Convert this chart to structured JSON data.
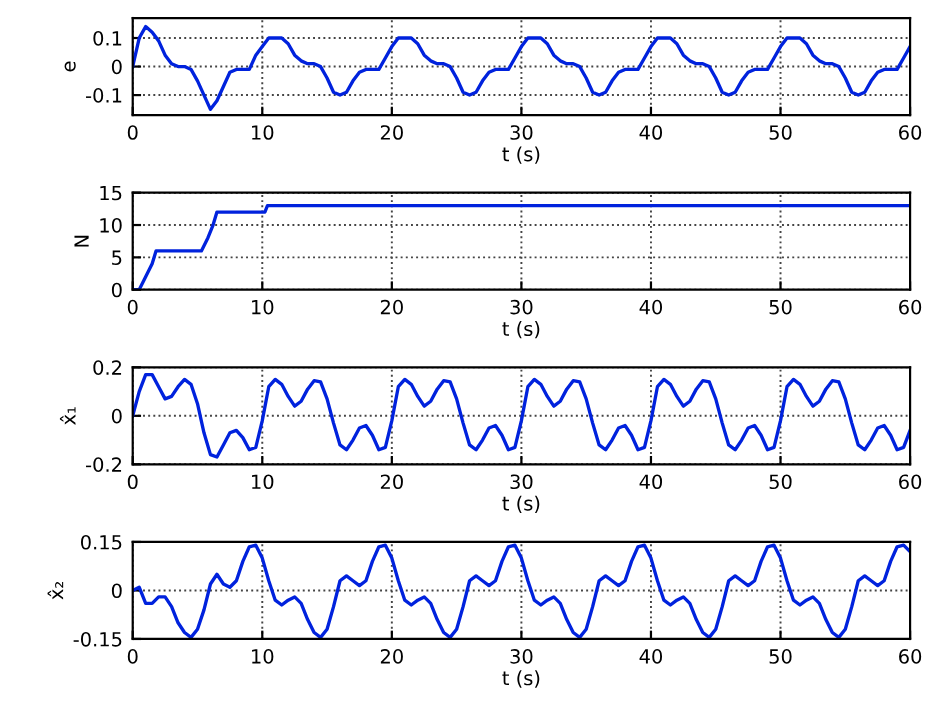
{
  "chart_data": [
    {
      "type": "line",
      "xlabel": "t (s)",
      "ylabel": "e",
      "xlim": [
        0,
        60
      ],
      "xticks": [
        0,
        10,
        20,
        30,
        40,
        50,
        60
      ],
      "ylim": [
        -0.17,
        0.17
      ],
      "yticks": [
        -0.1,
        0,
        0.1
      ],
      "grid": true,
      "x": [
        0,
        0.5,
        1,
        1.5,
        2,
        2.5,
        3,
        3.5,
        4,
        4.5,
        5,
        5.5,
        6,
        6.5,
        7,
        7.5,
        8,
        8.5,
        9,
        9.5,
        10,
        10.5,
        11,
        11.5,
        12,
        12.5,
        13,
        13.5,
        14,
        14.5,
        15,
        15.5,
        16,
        16.5,
        17,
        17.5,
        18,
        18.5,
        19,
        19.5,
        20,
        20.5,
        21,
        21.5,
        22,
        22.5,
        23,
        23.5,
        24,
        24.5,
        25,
        25.5,
        26,
        26.5,
        27,
        27.5,
        28,
        28.5,
        29,
        29.5,
        30,
        30.5,
        31,
        31.5,
        32,
        32.5,
        33,
        33.5,
        34,
        34.5,
        35,
        35.5,
        36,
        36.5,
        37,
        37.5,
        38,
        38.5,
        39,
        39.5,
        40,
        40.5,
        41,
        41.5,
        42,
        42.5,
        43,
        43.5,
        44,
        44.5,
        45,
        45.5,
        46,
        46.5,
        47,
        47.5,
        48,
        48.5,
        49,
        49.5,
        50,
        50.5,
        51,
        51.5,
        52,
        52.5,
        53,
        53.5,
        54,
        54.5,
        55,
        55.5,
        56,
        56.5,
        57,
        57.5,
        58,
        58.5,
        59,
        59.5,
        60
      ],
      "series": [
        {
          "color": "#0022dd",
          "values": [
            0.0,
            0.1,
            0.14,
            0.12,
            0.09,
            0.04,
            0.01,
            0.0,
            0.0,
            -0.01,
            -0.05,
            -0.1,
            -0.15,
            -0.12,
            -0.07,
            -0.02,
            -0.01,
            -0.01,
            -0.01,
            0.04,
            0.07,
            0.1,
            0.1,
            0.1,
            0.08,
            0.04,
            0.02,
            0.01,
            0.01,
            0.0,
            -0.04,
            -0.09,
            -0.1,
            -0.09,
            -0.05,
            -0.02,
            -0.01,
            -0.01,
            -0.01,
            0.03,
            0.07,
            0.1,
            0.1,
            0.1,
            0.08,
            0.04,
            0.02,
            0.01,
            0.01,
            0.0,
            -0.04,
            -0.09,
            -0.1,
            -0.09,
            -0.05,
            -0.02,
            -0.01,
            -0.01,
            -0.01,
            0.03,
            0.07,
            0.1,
            0.1,
            0.1,
            0.08,
            0.04,
            0.02,
            0.01,
            0.01,
            0.0,
            -0.04,
            -0.09,
            -0.1,
            -0.09,
            -0.05,
            -0.02,
            -0.01,
            -0.01,
            -0.01,
            0.03,
            0.07,
            0.1,
            0.1,
            0.1,
            0.08,
            0.04,
            0.02,
            0.01,
            0.01,
            0.0,
            -0.04,
            -0.09,
            -0.1,
            -0.09,
            -0.05,
            -0.02,
            -0.01,
            -0.01,
            -0.01,
            0.03,
            0.07,
            0.1,
            0.1,
            0.1,
            0.08,
            0.04,
            0.02,
            0.01,
            0.01,
            0.0,
            -0.04,
            -0.09,
            -0.1,
            -0.09,
            -0.05,
            -0.02,
            -0.01,
            -0.01,
            -0.01,
            0.03,
            0.07
          ]
        }
      ]
    },
    {
      "type": "line",
      "xlabel": "t (s)",
      "ylabel": "N",
      "xlim": [
        0,
        60
      ],
      "xticks": [
        0,
        10,
        20,
        30,
        40,
        50,
        60
      ],
      "ylim": [
        0,
        15
      ],
      "yticks": [
        0,
        5,
        10,
        15
      ],
      "grid": true,
      "x": [
        0,
        0.5,
        1,
        1.5,
        1.8,
        5.3,
        5.8,
        6.2,
        6.5,
        10.2,
        10.4,
        60
      ],
      "series": [
        {
          "color": "#0022dd",
          "values": [
            0,
            0,
            2,
            4,
            6,
            6,
            8,
            10,
            12,
            12,
            13,
            13
          ]
        }
      ]
    },
    {
      "type": "line",
      "xlabel": "t (s)",
      "ylabel": "x̂₁",
      "xlim": [
        0,
        60
      ],
      "xticks": [
        0,
        10,
        20,
        30,
        40,
        50,
        60
      ],
      "ylim": [
        -0.2,
        0.2
      ],
      "yticks": [
        -0.2,
        0,
        0.2
      ],
      "grid": true,
      "x": [
        0,
        0.5,
        1,
        1.5,
        2,
        2.5,
        3,
        3.5,
        4,
        4.5,
        5,
        5.5,
        6,
        6.5,
        7,
        7.5,
        8,
        8.5,
        9,
        9.5,
        10,
        10.5,
        11,
        11.5,
        12,
        12.5,
        13,
        13.5,
        14,
        14.5,
        15,
        15.5,
        16,
        16.5,
        17,
        17.5,
        18,
        18.5,
        19,
        19.5,
        20,
        20.5,
        21,
        21.5,
        22,
        22.5,
        23,
        23.5,
        24,
        24.5,
        25,
        25.5,
        26,
        26.5,
        27,
        27.5,
        28,
        28.5,
        29,
        29.5,
        30,
        30.5,
        31,
        31.5,
        32,
        32.5,
        33,
        33.5,
        34,
        34.5,
        35,
        35.5,
        36,
        36.5,
        37,
        37.5,
        38,
        38.5,
        39,
        39.5,
        40,
        40.5,
        41,
        41.5,
        42,
        42.5,
        43,
        43.5,
        44,
        44.5,
        45,
        45.5,
        46,
        46.5,
        47,
        47.5,
        48,
        48.5,
        49,
        49.5,
        50,
        50.5,
        51,
        51.5,
        52,
        52.5,
        53,
        53.5,
        54,
        54.5,
        55,
        55.5,
        56,
        56.5,
        57,
        57.5,
        58,
        58.5,
        59,
        59.5,
        60
      ],
      "series": [
        {
          "color": "#0022dd",
          "values": [
            0.0,
            0.1,
            0.17,
            0.17,
            0.12,
            0.07,
            0.08,
            0.12,
            0.15,
            0.13,
            0.05,
            -0.07,
            -0.16,
            -0.17,
            -0.12,
            -0.07,
            -0.06,
            -0.09,
            -0.14,
            -0.13,
            -0.02,
            0.12,
            0.15,
            0.13,
            0.08,
            0.04,
            0.06,
            0.11,
            0.145,
            0.14,
            0.07,
            -0.03,
            -0.12,
            -0.14,
            -0.1,
            -0.05,
            -0.04,
            -0.08,
            -0.14,
            -0.13,
            -0.02,
            0.12,
            0.15,
            0.13,
            0.08,
            0.04,
            0.06,
            0.11,
            0.145,
            0.14,
            0.07,
            -0.03,
            -0.12,
            -0.14,
            -0.1,
            -0.05,
            -0.04,
            -0.08,
            -0.14,
            -0.13,
            -0.02,
            0.12,
            0.15,
            0.13,
            0.08,
            0.04,
            0.06,
            0.11,
            0.145,
            0.14,
            0.07,
            -0.03,
            -0.12,
            -0.14,
            -0.1,
            -0.05,
            -0.04,
            -0.08,
            -0.14,
            -0.13,
            -0.02,
            0.12,
            0.15,
            0.13,
            0.08,
            0.04,
            0.06,
            0.11,
            0.145,
            0.14,
            0.07,
            -0.03,
            -0.12,
            -0.14,
            -0.1,
            -0.05,
            -0.04,
            -0.08,
            -0.14,
            -0.13,
            -0.02,
            0.12,
            0.15,
            0.13,
            0.08,
            0.04,
            0.06,
            0.11,
            0.145,
            0.14,
            0.07,
            -0.03,
            -0.12,
            -0.14,
            -0.1,
            -0.05,
            -0.04,
            -0.08,
            -0.14,
            -0.13,
            -0.06
          ]
        }
      ]
    },
    {
      "type": "line",
      "xlabel": "t (s)",
      "ylabel": "x̂₂",
      "xlim": [
        0,
        60
      ],
      "xticks": [
        0,
        10,
        20,
        30,
        40,
        50,
        60
      ],
      "ylim": [
        -0.15,
        0.15
      ],
      "yticks": [
        -0.15,
        0,
        0.15
      ],
      "grid": true,
      "x": [
        0,
        0.5,
        1,
        1.5,
        2,
        2.5,
        3,
        3.5,
        4,
        4.5,
        5,
        5.5,
        6,
        6.5,
        7,
        7.5,
        8,
        8.5,
        9,
        9.5,
        10,
        10.5,
        11,
        11.5,
        12,
        12.5,
        13,
        13.5,
        14,
        14.5,
        15,
        15.5,
        16,
        16.5,
        17,
        17.5,
        18,
        18.5,
        19,
        19.5,
        20,
        20.5,
        21,
        21.5,
        22,
        22.5,
        23,
        23.5,
        24,
        24.5,
        25,
        25.5,
        26,
        26.5,
        27,
        27.5,
        28,
        28.5,
        29,
        29.5,
        30,
        30.5,
        31,
        31.5,
        32,
        32.5,
        33,
        33.5,
        34,
        34.5,
        35,
        35.5,
        36,
        36.5,
        37,
        37.5,
        38,
        38.5,
        39,
        39.5,
        40,
        40.5,
        41,
        41.5,
        42,
        42.5,
        43,
        43.5,
        44,
        44.5,
        45,
        45.5,
        46,
        46.5,
        47,
        47.5,
        48,
        48.5,
        49,
        49.5,
        50,
        50.5,
        51,
        51.5,
        52,
        52.5,
        53,
        53.5,
        54,
        54.5,
        55,
        55.5,
        56,
        56.5,
        57,
        57.5,
        58,
        58.5,
        59,
        59.5,
        60
      ],
      "series": [
        {
          "color": "#0022dd",
          "values": [
            0.0,
            0.01,
            -0.04,
            -0.04,
            -0.02,
            -0.02,
            -0.05,
            -0.1,
            -0.13,
            -0.145,
            -0.12,
            -0.06,
            0.02,
            0.05,
            0.02,
            0.01,
            0.03,
            0.09,
            0.135,
            0.14,
            0.1,
            0.03,
            -0.03,
            -0.045,
            -0.03,
            -0.02,
            -0.04,
            -0.09,
            -0.13,
            -0.145,
            -0.12,
            -0.05,
            0.03,
            0.045,
            0.03,
            0.015,
            0.03,
            0.09,
            0.135,
            0.14,
            0.1,
            0.03,
            -0.03,
            -0.045,
            -0.03,
            -0.02,
            -0.04,
            -0.09,
            -0.13,
            -0.145,
            -0.12,
            -0.05,
            0.03,
            0.045,
            0.03,
            0.015,
            0.03,
            0.09,
            0.135,
            0.14,
            0.1,
            0.03,
            -0.03,
            -0.045,
            -0.03,
            -0.02,
            -0.04,
            -0.09,
            -0.13,
            -0.145,
            -0.12,
            -0.05,
            0.03,
            0.045,
            0.03,
            0.015,
            0.03,
            0.09,
            0.135,
            0.14,
            0.1,
            0.03,
            -0.03,
            -0.045,
            -0.03,
            -0.02,
            -0.04,
            -0.09,
            -0.13,
            -0.145,
            -0.12,
            -0.05,
            0.03,
            0.045,
            0.03,
            0.015,
            0.03,
            0.09,
            0.135,
            0.14,
            0.1,
            0.03,
            -0.03,
            -0.045,
            -0.03,
            -0.02,
            -0.04,
            -0.09,
            -0.13,
            -0.145,
            -0.12,
            -0.05,
            0.03,
            0.045,
            0.03,
            0.015,
            0.03,
            0.09,
            0.135,
            0.14,
            0.12
          ]
        }
      ]
    }
  ]
}
